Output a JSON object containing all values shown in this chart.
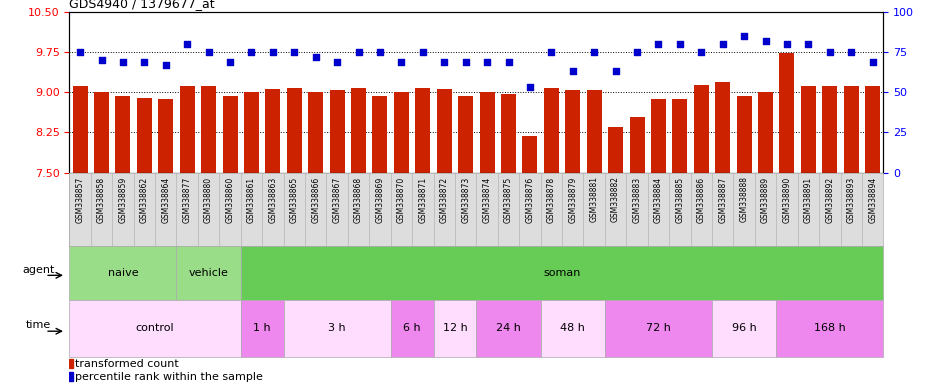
{
  "title": "GDS4940 / 1379677_at",
  "categories": [
    "GSM338857",
    "GSM338858",
    "GSM338859",
    "GSM338862",
    "GSM338864",
    "GSM338877",
    "GSM338880",
    "GSM338860",
    "GSM338861",
    "GSM338863",
    "GSM338865",
    "GSM338866",
    "GSM338867",
    "GSM338868",
    "GSM338869",
    "GSM338870",
    "GSM338871",
    "GSM338872",
    "GSM338873",
    "GSM338874",
    "GSM338875",
    "GSM338876",
    "GSM338878",
    "GSM338879",
    "GSM338881",
    "GSM338882",
    "GSM338883",
    "GSM338884",
    "GSM338885",
    "GSM338886",
    "GSM338887",
    "GSM338888",
    "GSM338889",
    "GSM338890",
    "GSM338891",
    "GSM338892",
    "GSM338893",
    "GSM338894"
  ],
  "bar_values": [
    9.12,
    9.01,
    8.93,
    8.9,
    8.87,
    9.12,
    9.12,
    8.92,
    9.0,
    9.05,
    9.07,
    9.01,
    9.04,
    9.08,
    8.93,
    9.01,
    9.08,
    9.05,
    8.92,
    9.01,
    8.97,
    8.18,
    9.08,
    9.04,
    9.04,
    8.36,
    8.53,
    8.87,
    8.88,
    9.13,
    9.18,
    8.93,
    9.01,
    9.72,
    9.12,
    9.12,
    9.11,
    9.12
  ],
  "percentile_values": [
    75,
    70,
    69,
    69,
    67,
    80,
    75,
    69,
    75,
    75,
    75,
    72,
    69,
    75,
    75,
    69,
    75,
    69,
    69,
    69,
    69,
    53,
    75,
    63,
    75,
    63,
    75,
    80,
    80,
    75,
    80,
    85,
    82,
    80,
    80,
    75,
    75,
    69
  ],
  "bar_color": "#cc2200",
  "dot_color": "#0000cc",
  "ylim_left": [
    7.5,
    10.5
  ],
  "ylim_right": [
    0,
    100
  ],
  "yticks_left": [
    7.5,
    8.25,
    9.0,
    9.75,
    10.5
  ],
  "yticks_right": [
    0,
    25,
    50,
    75,
    100
  ],
  "gridline_lefts": [
    7.5,
    8.25,
    9.0,
    9.75
  ],
  "agent_segments": [
    {
      "label": "naive",
      "start": 0,
      "end": 5,
      "color": "#99dd88"
    },
    {
      "label": "vehicle",
      "start": 5,
      "end": 8,
      "color": "#99dd88"
    },
    {
      "label": "soman",
      "start": 8,
      "end": 38,
      "color": "#66cc55"
    }
  ],
  "time_segments": [
    {
      "label": "control",
      "start": 0,
      "end": 8,
      "color": "#ffddff"
    },
    {
      "label": "1 h",
      "start": 8,
      "end": 10,
      "color": "#ee88ee"
    },
    {
      "label": "3 h",
      "start": 10,
      "end": 15,
      "color": "#ffddff"
    },
    {
      "label": "6 h",
      "start": 15,
      "end": 17,
      "color": "#ee88ee"
    },
    {
      "label": "12 h",
      "start": 17,
      "end": 19,
      "color": "#ffddff"
    },
    {
      "label": "24 h",
      "start": 19,
      "end": 22,
      "color": "#ee88ee"
    },
    {
      "label": "48 h",
      "start": 22,
      "end": 25,
      "color": "#ffddff"
    },
    {
      "label": "72 h",
      "start": 25,
      "end": 30,
      "color": "#ee88ee"
    },
    {
      "label": "96 h",
      "start": 30,
      "end": 33,
      "color": "#ffddff"
    },
    {
      "label": "168 h",
      "start": 33,
      "end": 38,
      "color": "#ee88ee"
    }
  ],
  "xtick_bg": "#dddddd",
  "agent_border_color": "#aaaaaa",
  "time_border_color": "#aaaaaa"
}
